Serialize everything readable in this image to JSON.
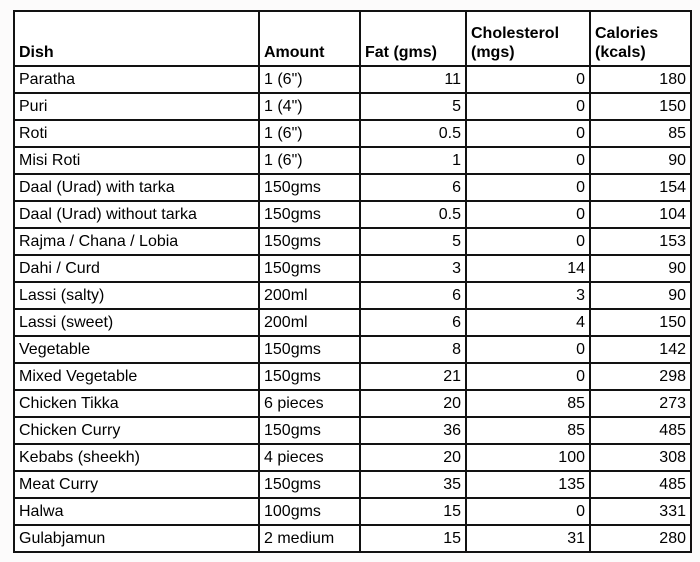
{
  "chart_data": {
    "type": "table",
    "title": "",
    "columns": [
      {
        "key": "dish",
        "label": "Dish",
        "align": "left"
      },
      {
        "key": "amount",
        "label": "Amount",
        "align": "left"
      },
      {
        "key": "fat",
        "label": "Fat (gms)",
        "align": "right"
      },
      {
        "key": "cholesterol",
        "label": "Cholesterol (mgs)",
        "align": "right"
      },
      {
        "key": "calories",
        "label": "Calories (kcals)",
        "align": "right"
      }
    ],
    "rows": [
      {
        "dish": "Paratha",
        "amount": "1 (6\")",
        "fat": "11",
        "cholesterol": "0",
        "calories": "180"
      },
      {
        "dish": "Puri",
        "amount": "1 (4\")",
        "fat": "5",
        "cholesterol": "0",
        "calories": "150"
      },
      {
        "dish": "Roti",
        "amount": "1 (6\")",
        "fat": "0.5",
        "cholesterol": "0",
        "calories": "85"
      },
      {
        "dish": "Misi Roti",
        "amount": "1 (6\")",
        "fat": "1",
        "cholesterol": "0",
        "calories": "90"
      },
      {
        "dish": "Daal (Urad) with tarka",
        "amount": "150gms",
        "fat": "6",
        "cholesterol": "0",
        "calories": "154"
      },
      {
        "dish": "Daal (Urad) without tarka",
        "amount": "150gms",
        "fat": "0.5",
        "cholesterol": "0",
        "calories": "104"
      },
      {
        "dish": "Rajma / Chana / Lobia",
        "amount": "150gms",
        "fat": "5",
        "cholesterol": "0",
        "calories": "153"
      },
      {
        "dish": "Dahi / Curd",
        "amount": "150gms",
        "fat": "3",
        "cholesterol": "14",
        "calories": "90"
      },
      {
        "dish": "Lassi (salty)",
        "amount": "200ml",
        "fat": "6",
        "cholesterol": "3",
        "calories": "90"
      },
      {
        "dish": "Lassi (sweet)",
        "amount": "200ml",
        "fat": "6",
        "cholesterol": "4",
        "calories": "150"
      },
      {
        "dish": "Vegetable",
        "amount": "150gms",
        "fat": "8",
        "cholesterol": "0",
        "calories": "142"
      },
      {
        "dish": "Mixed Vegetable",
        "amount": "150gms",
        "fat": "21",
        "cholesterol": "0",
        "calories": "298"
      },
      {
        "dish": "Chicken Tikka",
        "amount": "6 pieces",
        "fat": "20",
        "cholesterol": "85",
        "calories": "273"
      },
      {
        "dish": "Chicken Curry",
        "amount": "150gms",
        "fat": "36",
        "cholesterol": "85",
        "calories": "485"
      },
      {
        "dish": "Kebabs (sheekh)",
        "amount": "4 pieces",
        "fat": "20",
        "cholesterol": "100",
        "calories": "308"
      },
      {
        "dish": "Meat Curry",
        "amount": "150gms",
        "fat": "35",
        "cholesterol": "135",
        "calories": "485"
      },
      {
        "dish": "Halwa",
        "amount": "100gms",
        "fat": "15",
        "cholesterol": "0",
        "calories": "331"
      },
      {
        "dish": "Gulabjamun",
        "amount": "2 medium",
        "fat": "15",
        "cholesterol": "31",
        "calories": "280"
      }
    ],
    "layout": {
      "grid": "on",
      "border_color": "#121212",
      "cell_background": "#ffffff",
      "header_bold": true
    }
  }
}
